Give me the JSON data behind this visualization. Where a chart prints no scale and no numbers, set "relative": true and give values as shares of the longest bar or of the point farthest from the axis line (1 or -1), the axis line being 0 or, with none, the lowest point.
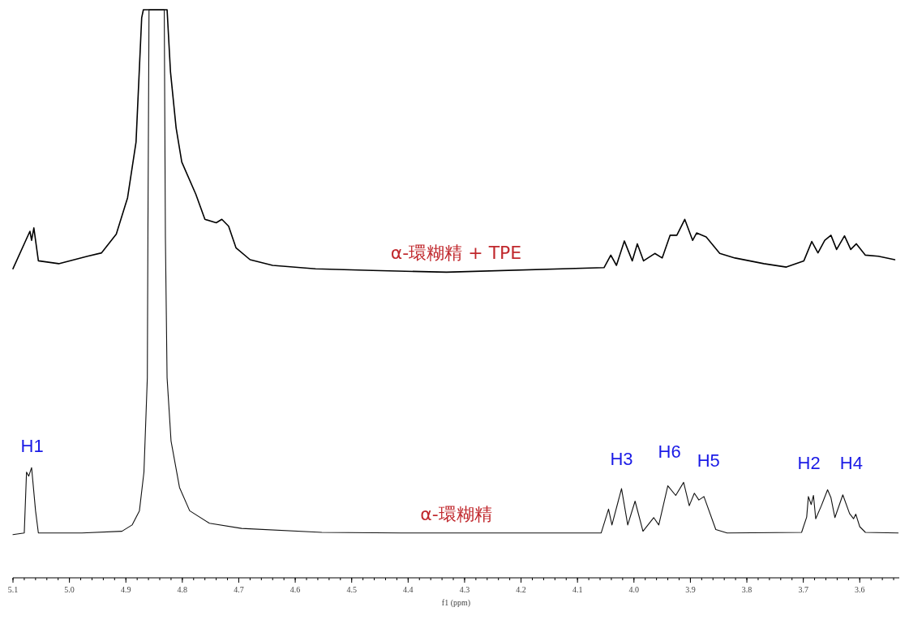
{
  "chart_data": {
    "type": "line",
    "relative": true,
    "xlabel": "f1 (ppm)",
    "xlim": [
      5.1,
      3.53
    ],
    "xticks": [
      5.1,
      {
        "value": 5,
        "label": "5.0"
      },
      4.9,
      4.8,
      4.7,
      4.6,
      4.5,
      4.4,
      4.3,
      4.2,
      4.1,
      {
        "value": 4,
        "label": "4.0"
      },
      3.9,
      3.8,
      3.7,
      3.6
    ],
    "grid": false,
    "marker": "none",
    "line_style": "solid",
    "series": [
      {
        "name": "α-環糊精 + TPE",
        "color": "#000000",
        "x": [
          5.1,
          5.07,
          5.067,
          5.063,
          5.055,
          5.019,
          4.968,
          4.943,
          4.917,
          4.897,
          4.882,
          4.872,
          4.869,
          4.827,
          4.821,
          4.811,
          4.801,
          4.776,
          4.76,
          4.74,
          4.73,
          4.718,
          4.705,
          4.68,
          4.64,
          4.564,
          4.463,
          4.332,
          4.053,
          4.041,
          4.031,
          4.017,
          4.003,
          3.994,
          3.983,
          3.963,
          3.95,
          3.936,
          3.924,
          3.91,
          3.896,
          3.889,
          3.872,
          3.848,
          3.821,
          3.77,
          3.73,
          3.699,
          3.685,
          3.674,
          3.662,
          3.651,
          3.641,
          3.627,
          3.616,
          3.606,
          3.59,
          3.567,
          3.538
        ],
        "values": [
          0.544,
          0.61,
          0.594,
          0.616,
          0.558,
          0.553,
          0.566,
          0.572,
          0.605,
          0.669,
          0.767,
          0.986,
          1.0,
          1.0,
          0.891,
          0.792,
          0.732,
          0.675,
          0.631,
          0.625,
          0.631,
          0.619,
          0.581,
          0.56,
          0.55,
          0.544,
          0.541,
          0.538,
          0.546,
          0.568,
          0.55,
          0.593,
          0.558,
          0.588,
          0.558,
          0.571,
          0.563,
          0.603,
          0.603,
          0.631,
          0.594,
          0.607,
          0.6,
          0.571,
          0.563,
          0.553,
          0.547,
          0.558,
          0.592,
          0.572,
          0.594,
          0.603,
          0.578,
          0.602,
          0.578,
          0.588,
          0.568,
          0.566,
          0.56
        ]
      },
      {
        "name": "α-環糊精",
        "color": "#111111",
        "x": [
          5.1,
          5.08,
          5.076,
          5.072,
          5.067,
          5.06,
          5.055,
          4.978,
          4.907,
          4.889,
          4.876,
          4.868,
          4.862,
          4.861,
          4.859,
          4.832,
          4.83,
          4.827,
          4.82,
          4.805,
          4.787,
          4.752,
          4.695,
          4.553,
          4.412,
          4.058,
          4.045,
          4.039,
          4.022,
          4.011,
          3.998,
          3.984,
          3.965,
          3.956,
          3.94,
          3.926,
          3.912,
          3.902,
          3.893,
          3.885,
          3.876,
          3.855,
          3.835,
          3.703,
          3.694,
          3.691,
          3.686,
          3.682,
          3.678,
          3.668,
          3.657,
          3.651,
          3.644,
          3.63,
          3.618,
          3.611,
          3.607,
          3.6,
          3.59,
          3.532
        ],
        "values": [
          0.076,
          0.079,
          0.186,
          0.179,
          0.194,
          0.118,
          0.079,
          0.079,
          0.082,
          0.093,
          0.118,
          0.186,
          0.352,
          0.6,
          1.0,
          1.0,
          0.6,
          0.352,
          0.241,
          0.159,
          0.118,
          0.096,
          0.087,
          0.08,
          0.079,
          0.079,
          0.121,
          0.093,
          0.157,
          0.093,
          0.135,
          0.082,
          0.106,
          0.093,
          0.162,
          0.145,
          0.168,
          0.127,
          0.149,
          0.137,
          0.143,
          0.085,
          0.079,
          0.08,
          0.107,
          0.143,
          0.129,
          0.145,
          0.104,
          0.127,
          0.155,
          0.141,
          0.106,
          0.146,
          0.113,
          0.104,
          0.112,
          0.09,
          0.08,
          0.079
        ]
      }
    ],
    "annotations": [
      "H1",
      "H3",
      "H6",
      "H5",
      "H2",
      "H4"
    ]
  }
}
